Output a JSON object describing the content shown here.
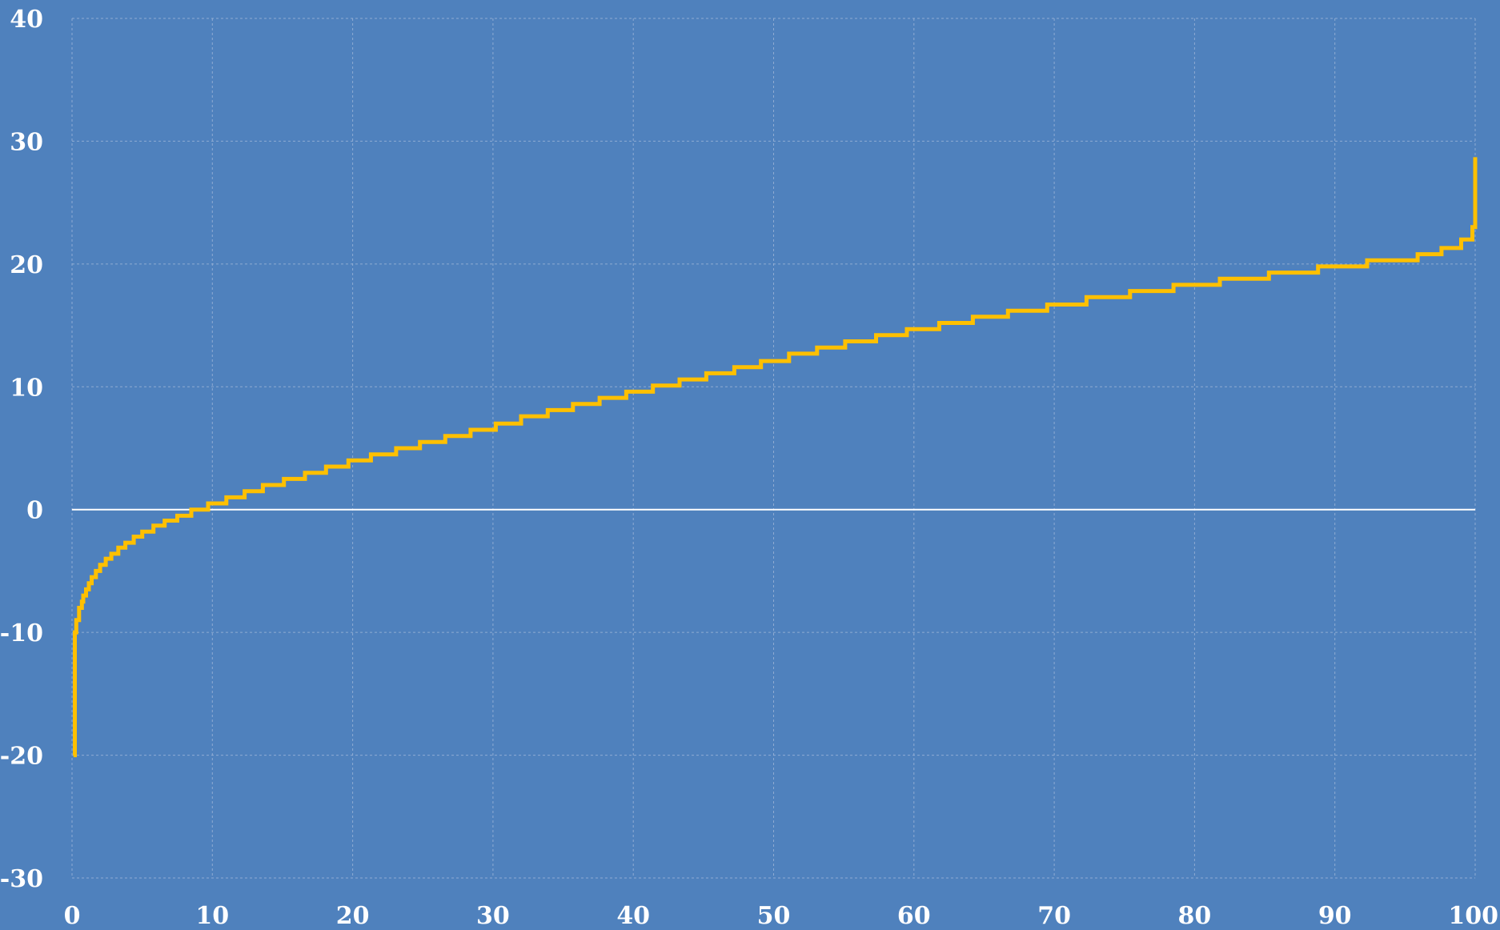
{
  "colors": {
    "background": "#4f81bd",
    "series": "#ffc000",
    "text": "#ffffff",
    "grid": "#9fb6d8"
  },
  "chart_data": {
    "type": "line",
    "title": "",
    "xlabel": "",
    "ylabel": "",
    "xlim": [
      0,
      100
    ],
    "ylim": [
      -30,
      40
    ],
    "grid": true,
    "legend": "none",
    "x_ticks": [
      0,
      10,
      20,
      30,
      40,
      50,
      60,
      70,
      80,
      90,
      100
    ],
    "y_ticks": [
      -30,
      -20,
      -10,
      0,
      10,
      20,
      30,
      40
    ],
    "x_tick_labels": [
      "0",
      "10",
      "20",
      "30",
      "40",
      "50",
      "60",
      "70",
      "80",
      "90",
      "100"
    ],
    "y_tick_labels": [
      "-30",
      "-20",
      "-10",
      "0",
      "10",
      "20",
      "30",
      "40"
    ],
    "series": [
      {
        "x": [
          0.1,
          0.2,
          0.3,
          0.5,
          0.7,
          0.8,
          1.0,
          1.2,
          1.4,
          1.7,
          2.0,
          2.4,
          2.8,
          3.3,
          3.8,
          4.4,
          5.0,
          5.8,
          6.6,
          7.5,
          8.5,
          9.7,
          11.0,
          12.3,
          13.6,
          15.1,
          16.6,
          18.1,
          19.7,
          21.3,
          23.1,
          24.8,
          26.6,
          28.4,
          30.2,
          32.0,
          33.9,
          35.7,
          37.6,
          39.5,
          41.4,
          43.3,
          45.2,
          47.2,
          49.1,
          51.1,
          53.1,
          55.1,
          57.3,
          59.5,
          61.8,
          64.2,
          66.7,
          69.5,
          72.3,
          75.4,
          78.5,
          81.8,
          85.3,
          88.8,
          92.3,
          95.9,
          97.6,
          99.0,
          99.8,
          100.0,
          100.0
        ],
        "values": [
          -20.0,
          -10.0,
          -9.0,
          -8.0,
          -7.5,
          -7.0,
          -6.5,
          -6.0,
          -5.5,
          -5.0,
          -4.5,
          -4.0,
          -3.6,
          -3.1,
          -2.7,
          -2.2,
          -1.8,
          -1.3,
          -0.9,
          -0.5,
          0.0,
          0.5,
          1.0,
          1.5,
          2.0,
          2.5,
          3.0,
          3.5,
          4.0,
          4.5,
          5.0,
          5.5,
          6.0,
          6.5,
          7.0,
          7.6,
          8.1,
          8.6,
          9.1,
          9.6,
          10.1,
          10.6,
          11.1,
          11.6,
          12.1,
          12.7,
          13.2,
          13.7,
          14.2,
          14.7,
          15.2,
          15.7,
          16.2,
          16.7,
          17.3,
          17.8,
          18.3,
          18.8,
          19.3,
          19.8,
          20.3,
          20.8,
          21.3,
          22.0,
          23.0,
          25.0,
          28.7
        ]
      }
    ]
  }
}
